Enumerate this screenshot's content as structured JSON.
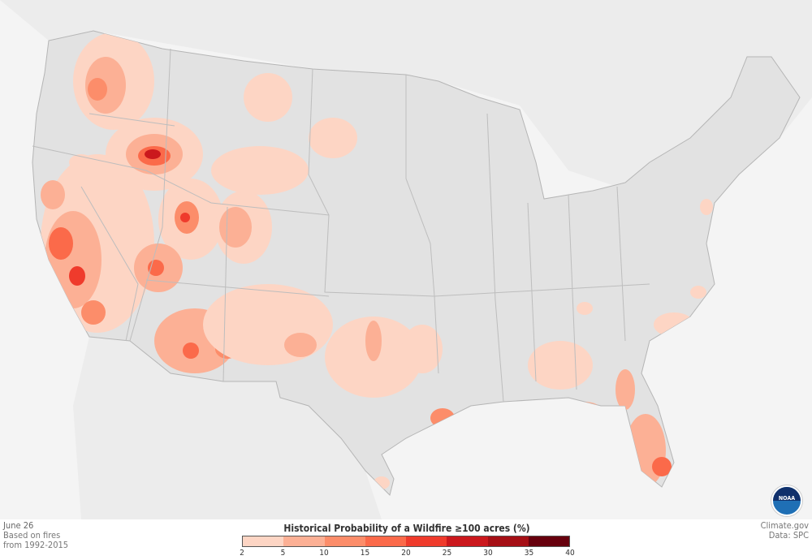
{
  "footer": {
    "date": "June 26",
    "note_line1": "Based on fires",
    "note_line2": "from 1992-2015",
    "credit": "Climate.gov",
    "data_source": "Data: SPC"
  },
  "legend": {
    "title": "Historical Probability of a Wildfire ≥100 acres (%)",
    "ticks": [
      "2",
      "5",
      "10",
      "15",
      "20",
      "25",
      "30",
      "35",
      "40"
    ],
    "colors": [
      "#fdd5c4",
      "#fcb095",
      "#fc8d6a",
      "#fb6a4a",
      "#ef3b2c",
      "#cb181d",
      "#a50f15",
      "#67000d"
    ]
  },
  "logo": {
    "text": "NOAA"
  },
  "map": {
    "land_color": "#e2e2e2",
    "background_color": "#f4f4f4",
    "border_color": "#b5b5b5"
  }
}
